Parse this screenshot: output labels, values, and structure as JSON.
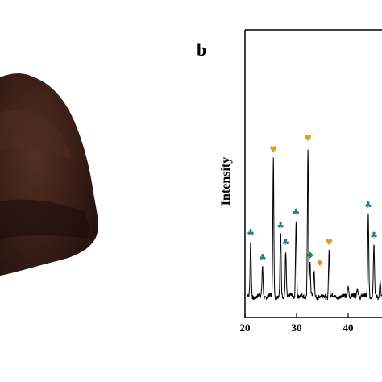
{
  "panel_b": {
    "letter": "b",
    "ylabel": "Intensity"
  },
  "colors": {
    "club_marker": "#1f7d86",
    "heart_marker": "#e0a11b",
    "diamond_marker": "#e88a1a",
    "green_marker": "#1a8a2a",
    "trace": "#000000",
    "powder_dark": "#2a1410",
    "powder_mid": "#4a2a1e"
  },
  "icons": {
    "club": "club-icon",
    "heart": "heart-icon",
    "diamond": "diamond-icon"
  },
  "chart_data": {
    "type": "line",
    "ylabel": "Intensity",
    "xlim": [
      20,
      47
    ],
    "x_ticks": [
      "20",
      "30",
      "40"
    ],
    "x_tick_values": [
      20,
      30,
      40
    ],
    "baseline": 10,
    "peaks": [
      {
        "x": 21.1,
        "h": 40,
        "w": 0.15,
        "marker": "club"
      },
      {
        "x": 23.4,
        "h": 22,
        "w": 0.15,
        "marker": "club"
      },
      {
        "x": 25.5,
        "h": 100,
        "w": 0.14,
        "marker": "heart"
      },
      {
        "x": 26.9,
        "h": 45,
        "w": 0.15,
        "marker": "club"
      },
      {
        "x": 27.9,
        "h": 33,
        "w": 0.15,
        "marker": "club"
      },
      {
        "x": 29.9,
        "h": 55,
        "w": 0.15,
        "marker": "club"
      },
      {
        "x": 32.2,
        "h": 108,
        "w": 0.14,
        "marker": "heart"
      },
      {
        "x": 32.6,
        "h": 24,
        "w": 0.15,
        "marker": "green"
      },
      {
        "x": 33.4,
        "h": 18,
        "w": 0.15,
        "marker": "diamond"
      },
      {
        "x": 36.3,
        "h": 33,
        "w": 0.15,
        "marker": "heart"
      },
      {
        "x": 40.0,
        "h": 8,
        "w": 0.2,
        "marker": ""
      },
      {
        "x": 41.8,
        "h": 7,
        "w": 0.2,
        "marker": ""
      },
      {
        "x": 43.9,
        "h": 60,
        "w": 0.15,
        "marker": "club"
      },
      {
        "x": 45.0,
        "h": 38,
        "w": 0.15,
        "marker": "club"
      },
      {
        "x": 46.2,
        "h": 12,
        "w": 0.15,
        "marker": "diamond"
      }
    ]
  }
}
